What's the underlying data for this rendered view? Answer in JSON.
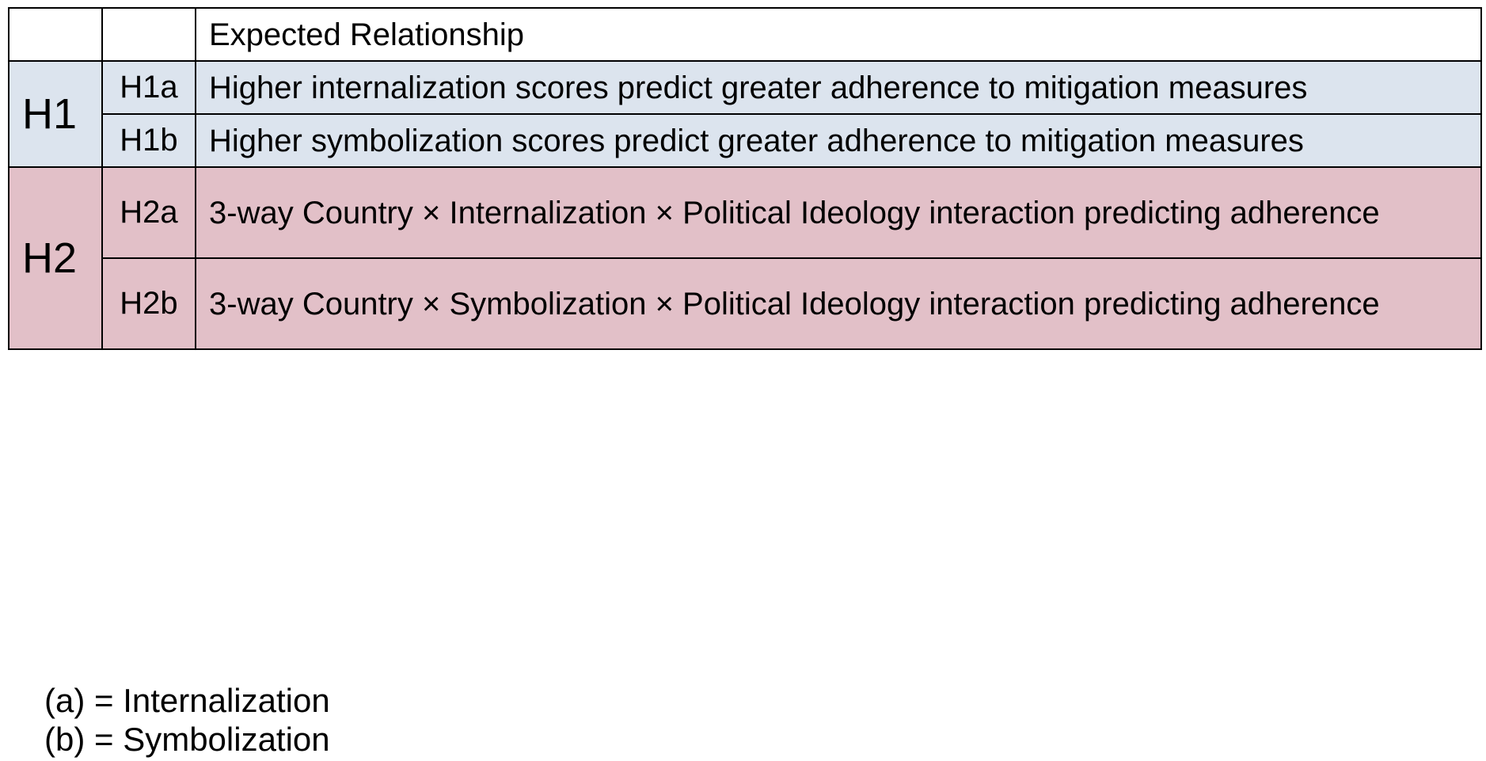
{
  "table": {
    "header": {
      "col1": "",
      "col2": "",
      "col3": "Expected Relationship"
    },
    "groups": [
      {
        "label": "H1",
        "color": "#dce4ee",
        "rows": [
          {
            "id": "H1a",
            "text": "Higher internalization scores predict greater adherence to mitigation measures"
          },
          {
            "id": "H1b",
            "text": "Higher symbolization scores predict greater adherence to mitigation measures"
          }
        ]
      },
      {
        "label": "H2",
        "color": "#e2c0c8",
        "rows": [
          {
            "id": "H2a",
            "text": "3-way Country × Internalization × Political Ideology interaction predicting adherence"
          },
          {
            "id": "H2b",
            "text": "3-way Country × Symbolization × Political Ideology interaction predicting adherence"
          }
        ]
      }
    ]
  },
  "legend": {
    "line1": "(a) = Internalization",
    "line2": "(b) = Symbolization"
  }
}
